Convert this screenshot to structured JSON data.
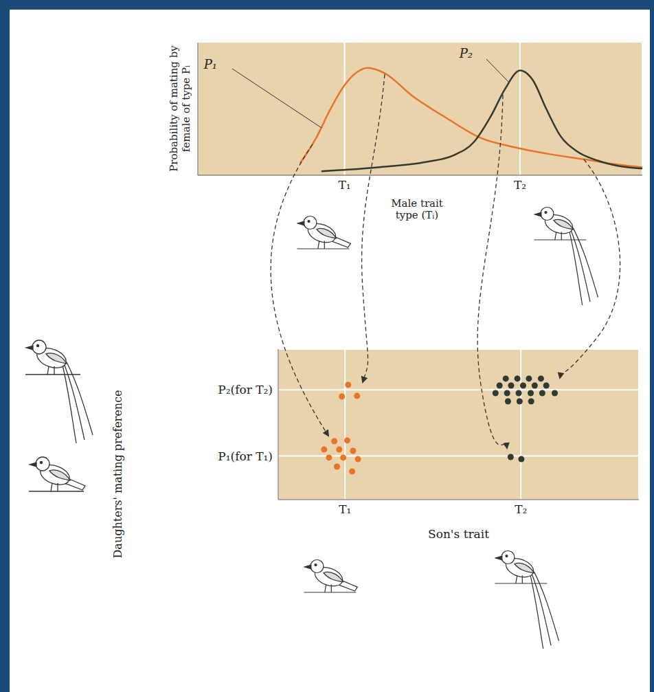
{
  "chart_data": [
    {
      "type": "line",
      "x_label": "Male trait type (Tᵢ)",
      "y_label": "Probability of mating by female of type Pᵢ",
      "xlim": [
        0,
        100
      ],
      "ylim": [
        0,
        100
      ],
      "xticks": [
        {
          "value": 33,
          "label": "T₁"
        },
        {
          "value": 72.5,
          "label": "T₂"
        }
      ],
      "yticks": [],
      "tick_labels": "x",
      "grid": true,
      "series": [
        {
          "name": "P₁",
          "color": "#e8742a",
          "x": [
            23,
            26.6,
            29.7,
            32.8,
            35.9,
            38.2,
            42,
            48.2,
            56,
            63.7,
            71.4,
            79,
            86.9,
            94.6,
            100
          ],
          "values": [
            9,
            28,
            49,
            67,
            78,
            81,
            77,
            60,
            43,
            28,
            21,
            16,
            12,
            8,
            6
          ]
        },
        {
          "name": "P₂",
          "color": "#2f3a30",
          "x": [
            27.8,
            40.5,
            51.3,
            57.5,
            62.1,
            66,
            69.1,
            72.5,
            75.3,
            78.4,
            81.5,
            85.3,
            90,
            94.6,
            100
          ],
          "values": [
            3,
            6,
            10,
            15,
            25,
            45,
            65,
            79,
            72,
            50,
            30,
            18,
            11,
            7,
            5
          ]
        }
      ]
    },
    {
      "type": "scatter",
      "x_label": "Son's trait",
      "y_label": "Daughters' mating preference",
      "xlim": [
        18,
        99
      ],
      "ylim": [
        0,
        100
      ],
      "xticks": [
        {
          "value": 33,
          "label": "T₁"
        },
        {
          "value": 72.5,
          "label": "T₂"
        }
      ],
      "yticks": [
        {
          "value": 29,
          "label": "P₁(for T₁)"
        },
        {
          "value": 73,
          "label": "P₂(for T₂)"
        }
      ],
      "grid": true,
      "series": [
        {
          "color": "#e8742a",
          "x": [
            33.7,
            32.3,
            35.7,
            30.6,
            33.5,
            28.3,
            31.7,
            34.8,
            29.4,
            32.6,
            35.9,
            31.2,
            34.6
          ],
          "values": [
            76.3,
            68.5,
            68.9,
            38.8,
            39.3,
            33.3,
            33.3,
            32.4,
            27.9,
            27.9,
            26.9,
            21.9,
            18.7
          ]
        },
        {
          "color": "#2f3a30",
          "x": [
            69.1,
            71.7,
            74.3,
            77.0,
            67.7,
            70.3,
            73.0,
            75.6,
            78.2,
            66.8,
            69.4,
            72.0,
            74.7,
            77.3,
            80.1,
            69.6,
            72.2,
            74.8,
            70.2,
            72.6
          ],
          "values": [
            80.4,
            80.4,
            80.4,
            80.4,
            75.8,
            75.8,
            75.8,
            75.8,
            75.8,
            70.8,
            70.8,
            70.8,
            70.8,
            70.8,
            70.8,
            65.3,
            65.3,
            65.3,
            28.3,
            26.9
          ]
        }
      ]
    }
  ]
}
